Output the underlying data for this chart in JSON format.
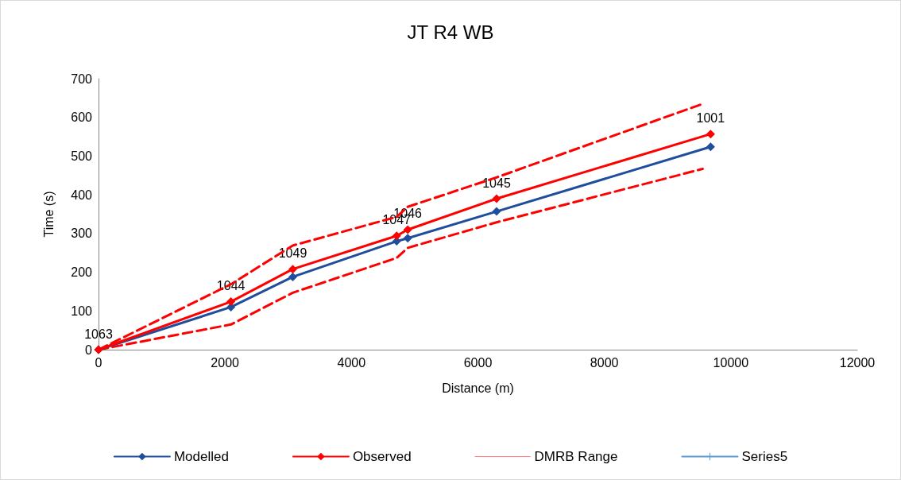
{
  "chart_data": {
    "type": "line",
    "title": "JT R4 WB",
    "xlabel": "Distance (m)",
    "ylabel": "Time (s)",
    "x": [
      0,
      2094,
      3072,
      4715,
      4890,
      6295,
      9680
    ],
    "series": [
      {
        "name": "Modelled",
        "color": "#1f4e9c",
        "marker": "diamond",
        "line_style": "solid",
        "values": [
          0,
          110,
          188,
          280,
          288,
          357,
          524
        ]
      },
      {
        "name": "Observed",
        "color": "#ff0000",
        "marker": "diamond",
        "line_style": "solid",
        "values": [
          0,
          124,
          208,
          294,
          310,
          390,
          557
        ]
      },
      {
        "name": "DMRB Range",
        "color": "#ff0000",
        "marker": "none",
        "line_style": "dashed",
        "x": [
          0,
          2094,
          3072,
          4715,
          4890,
          6295,
          9555
        ],
        "values": [
          0,
          169,
          269,
          343,
          369,
          445,
          635
        ]
      },
      {
        "color": "#ff0000",
        "marker": "none",
        "line_style": "dashed",
        "x": [
          0,
          2094,
          3072,
          4715,
          4890,
          6295,
          9555
        ],
        "values": [
          0,
          65,
          147,
          237,
          263,
          329,
          467
        ]
      },
      {
        "name": "Series5",
        "color": "#5b9bd5",
        "marker": "cross",
        "line_style": "solid",
        "values": [
          null,
          null,
          null,
          null,
          null,
          null,
          null
        ]
      }
    ],
    "xlim": [
      0,
      12000
    ],
    "xticks": [
      0,
      2000,
      4000,
      6000,
      8000,
      10000,
      12000
    ],
    "ylim": [
      0,
      700
    ],
    "yticks": [
      0,
      100,
      200,
      300,
      400,
      500,
      600,
      700
    ],
    "annotations": [
      {
        "text": "1063",
        "x": 0,
        "y": 0
      },
      {
        "text": "1044",
        "x": 2094,
        "y": 124
      },
      {
        "text": "1049",
        "x": 3072,
        "y": 208
      },
      {
        "text": "1047",
        "x": 4715,
        "y": 294
      },
      {
        "text": "1046",
        "x": 4890,
        "y": 310
      },
      {
        "text": "1045",
        "x": 6295,
        "y": 390
      },
      {
        "text": "1001",
        "x": 9680,
        "y": 557
      }
    ],
    "grid": false,
    "legend": "bottom"
  }
}
